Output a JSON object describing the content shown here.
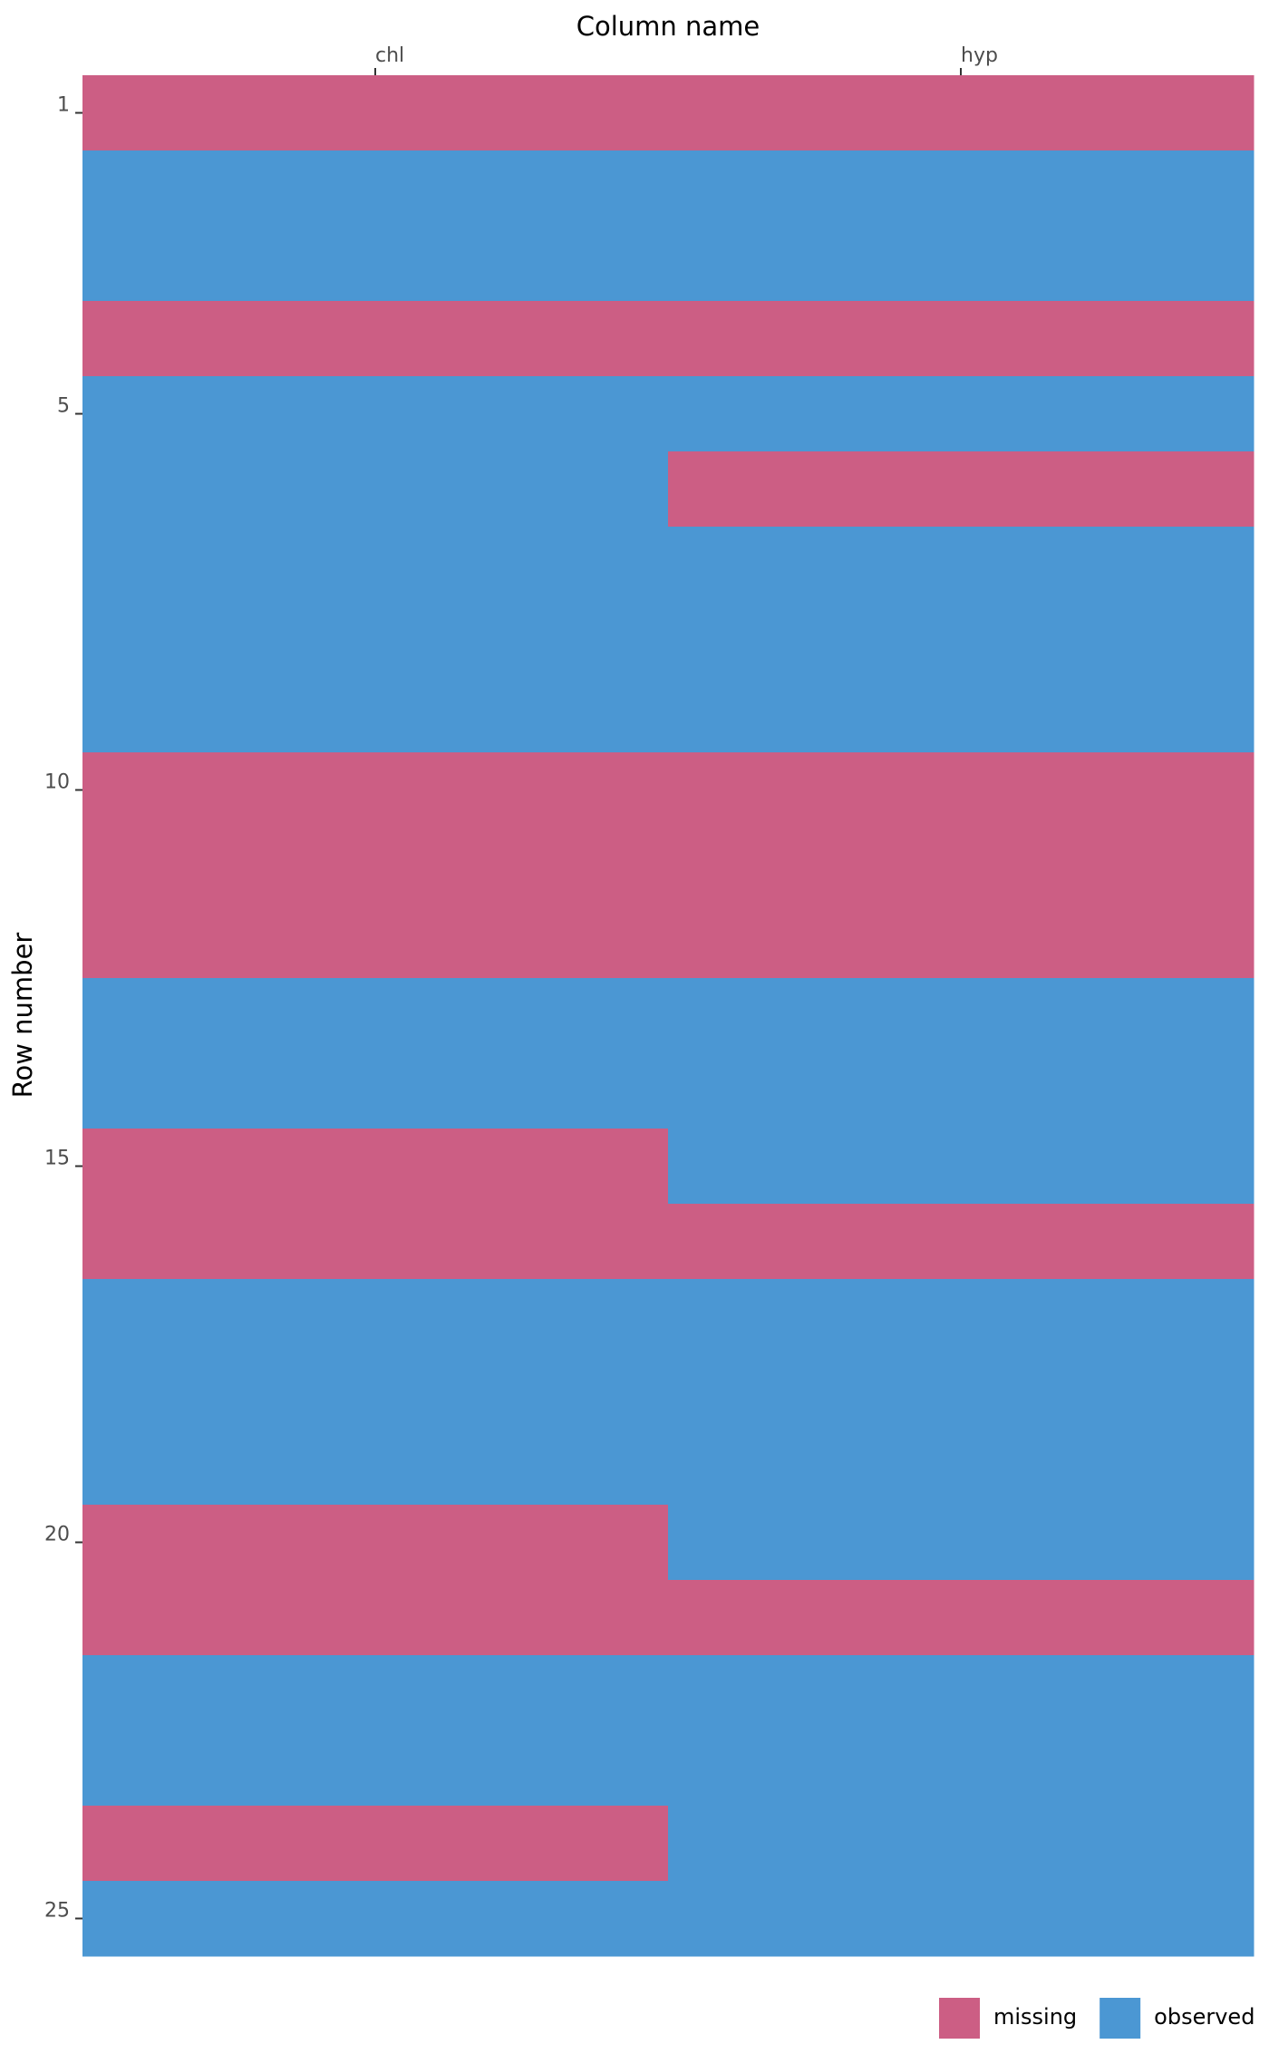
{
  "chart_data": {
    "type": "heatmap",
    "x_label": "Column name",
    "y_label": "Row number",
    "columns": [
      "chl",
      "hyp"
    ],
    "legend": {
      "categories": [
        "missing",
        "observed"
      ],
      "colors": [
        "#cc5e84",
        "#4b97d3"
      ]
    },
    "ylim": [
      0.5,
      25.5
    ],
    "yticks": [
      1,
      5,
      10,
      15,
      20,
      25
    ],
    "values": [
      [
        0,
        0
      ],
      [
        1,
        1
      ],
      [
        1,
        1
      ],
      [
        0,
        0
      ],
      [
        1,
        1
      ],
      [
        1,
        0
      ],
      [
        1,
        1
      ],
      [
        1,
        1
      ],
      [
        1,
        1
      ],
      [
        0,
        0
      ],
      [
        0,
        0
      ],
      [
        0,
        0
      ],
      [
        1,
        1
      ],
      [
        1,
        1
      ],
      [
        0,
        1
      ],
      [
        0,
        0
      ],
      [
        1,
        1
      ],
      [
        1,
        1
      ],
      [
        1,
        1
      ],
      [
        0,
        1
      ],
      [
        0,
        0
      ],
      [
        1,
        1
      ],
      [
        1,
        1
      ],
      [
        0,
        1
      ],
      [
        1,
        1
      ]
    ]
  }
}
